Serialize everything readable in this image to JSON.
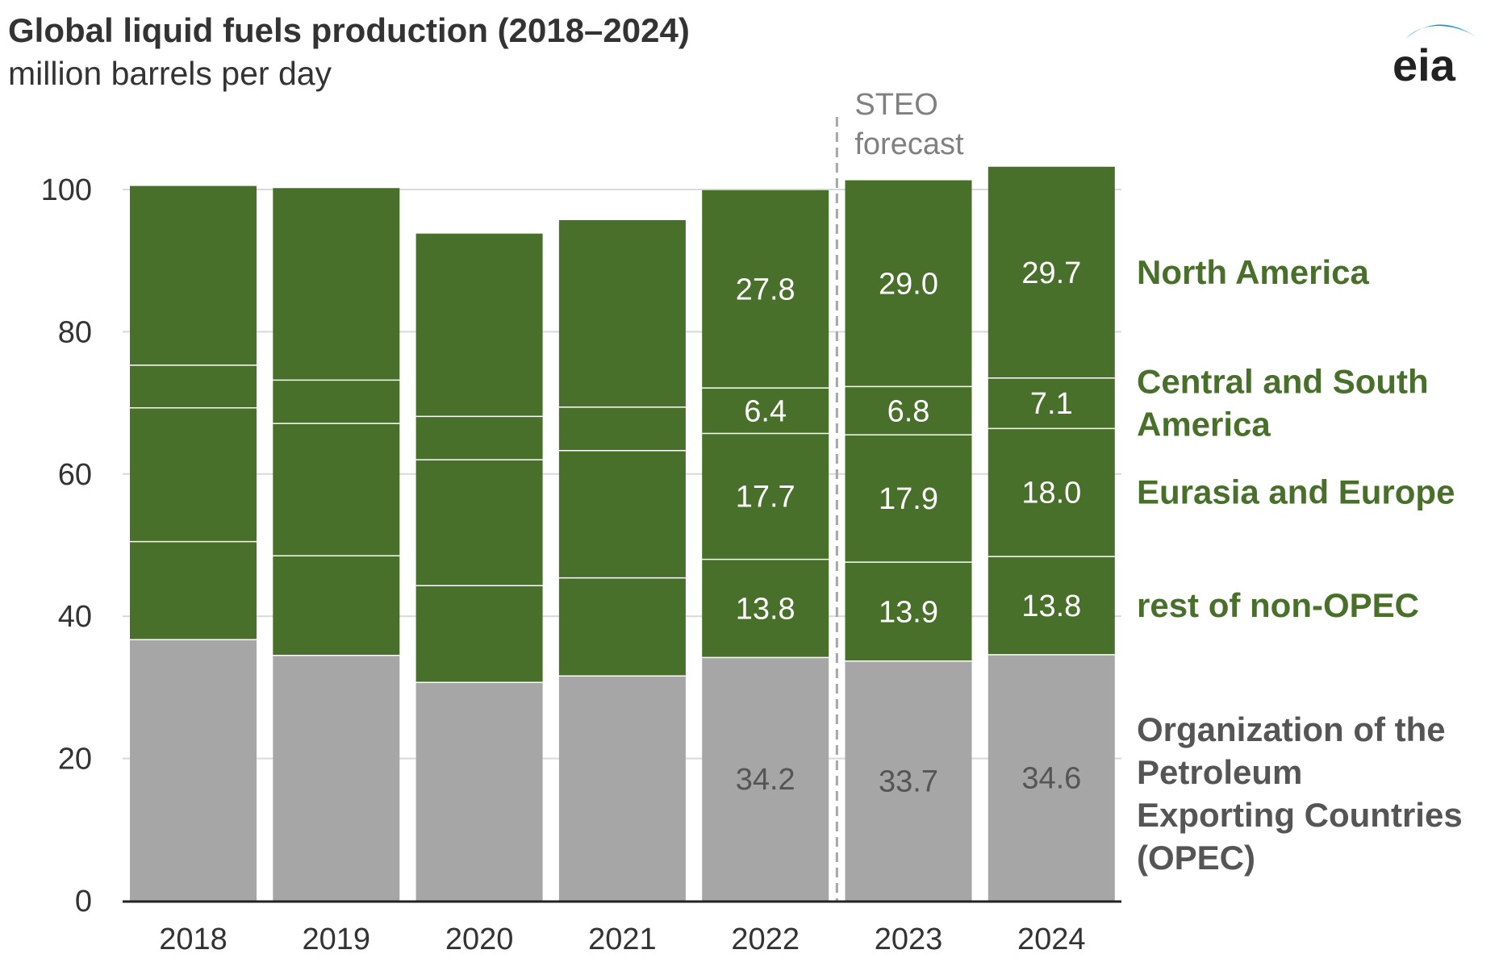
{
  "title": "Global liquid fuels production (2018–2024)",
  "subtitle": "million barrels per day",
  "logo_text": "eia",
  "forecast_label": [
    "STEO",
    "forecast"
  ],
  "colors": {
    "green": "#48702a",
    "gray": "#a6a6a6",
    "label_green": "#48702a",
    "label_gray": "#555555",
    "axis_text": "#333333",
    "grid": "#d9d9d9",
    "logo_blue": "#0096d6"
  },
  "chart_data": {
    "type": "bar",
    "stacked": true,
    "categories": [
      "2018",
      "2019",
      "2020",
      "2021",
      "2022",
      "2023",
      "2024"
    ],
    "ylim": [
      0,
      100
    ],
    "yticks": [
      0,
      20,
      40,
      60,
      80,
      100
    ],
    "grid": true,
    "forecast_start": "2023",
    "series": [
      {
        "name": "Organization of the Petroleum Exporting Countries (OPEC)",
        "legend_lines": [
          "Organization of the",
          "Petroleum",
          "Exporting Countries",
          "(OPEC)"
        ],
        "color_key": "gray",
        "values": [
          36.7,
          34.5,
          30.7,
          31.6,
          34.2,
          33.7,
          34.6
        ],
        "labels": [
          "",
          "",
          "",
          "",
          "34.2",
          "33.7",
          "34.6"
        ]
      },
      {
        "name": "rest of non-OPEC",
        "legend_lines": [
          "rest of non-OPEC"
        ],
        "color_key": "green",
        "values": [
          13.8,
          14.0,
          13.6,
          13.8,
          13.8,
          13.9,
          13.8
        ],
        "labels": [
          "",
          "",
          "",
          "",
          "13.8",
          "13.9",
          "13.8"
        ]
      },
      {
        "name": "Eurasia and Europe",
        "legend_lines": [
          "Eurasia and Europe"
        ],
        "color_key": "green",
        "values": [
          18.8,
          18.6,
          17.7,
          17.9,
          17.7,
          17.9,
          18.0
        ],
        "labels": [
          "",
          "",
          "",
          "",
          "17.7",
          "17.9",
          "18.0"
        ]
      },
      {
        "name": "Central and South America",
        "legend_lines": [
          "Central and South",
          "America"
        ],
        "color_key": "green",
        "values": [
          6.0,
          6.1,
          6.1,
          6.1,
          6.4,
          6.8,
          7.1
        ],
        "labels": [
          "",
          "",
          "",
          "",
          "6.4",
          "6.8",
          "7.1"
        ]
      },
      {
        "name": "North America",
        "legend_lines": [
          "North America"
        ],
        "color_key": "green",
        "values": [
          25.2,
          27.0,
          25.7,
          26.3,
          27.8,
          29.0,
          29.7
        ],
        "labels": [
          "",
          "",
          "",
          "",
          "27.8",
          "29.0",
          "29.7"
        ]
      }
    ]
  }
}
